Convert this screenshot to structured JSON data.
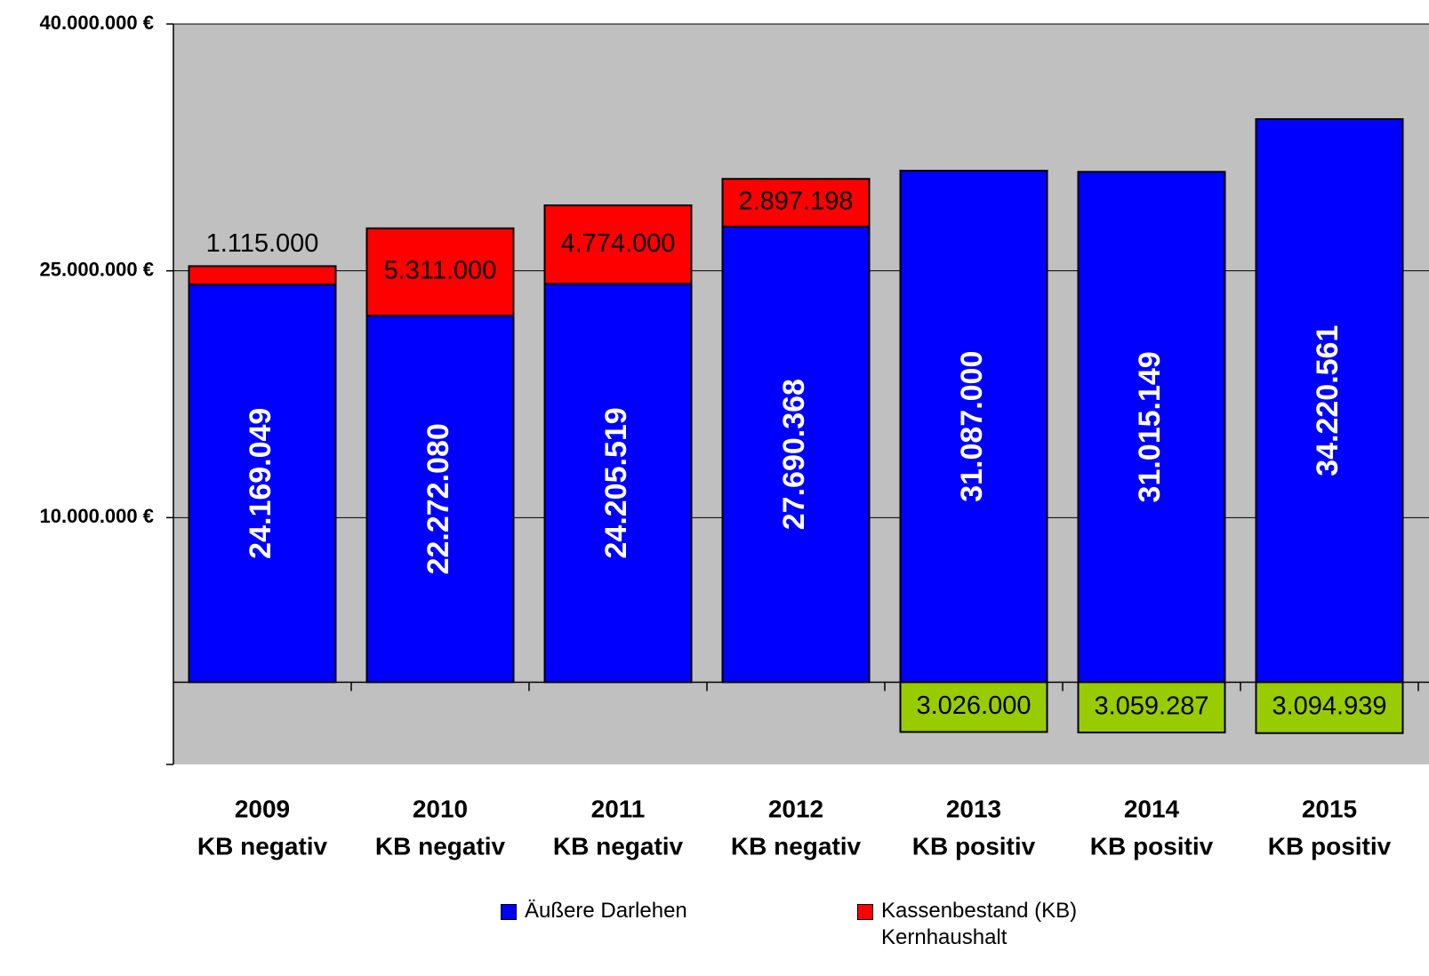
{
  "chart_data": {
    "type": "stacked_bar",
    "categories": [
      "2009",
      "2010",
      "2011",
      "2012",
      "2013",
      "2014",
      "2015"
    ],
    "category_sublabels": [
      "KB negativ",
      "KB negativ",
      "KB negativ",
      "KB negativ",
      "KB positiv",
      "KB positiv",
      "KB positiv"
    ],
    "series": [
      {
        "name": "Äußere Darlehen",
        "color": "#0000ff",
        "values": [
          24169049,
          22272080,
          24205519,
          27690368,
          31087000,
          31015149,
          34220561
        ],
        "value_labels": [
          "24.169.049",
          "22.272.080",
          "24.205.519",
          "27.690.368",
          "31.087.000",
          "31.015.149",
          "34.220.561"
        ]
      },
      {
        "name": "Kassenbestand (KB) Kernhaushalt",
        "color": "#ff0000",
        "negative_color": "#99cc00",
        "values": [
          1115000,
          5311000,
          4774000,
          2897198,
          -3026000,
          -3059287,
          -3094939
        ],
        "value_labels": [
          "1.115.000",
          "5.311.000",
          "4.774.000",
          "2.897.198",
          "3.026.000",
          "3.059.287",
          "3.094.939"
        ]
      }
    ],
    "ylim": [
      -5000000,
      40000000
    ],
    "yticks": [
      {
        "value": 40000000,
        "label": "40.000.000 €"
      },
      {
        "value": 25000000,
        "label": "25.000.000 €"
      },
      {
        "value": 10000000,
        "label": "10.000.000 €"
      }
    ],
    "grid": true,
    "background": "#c0c0c0",
    "legend": "bottom"
  }
}
